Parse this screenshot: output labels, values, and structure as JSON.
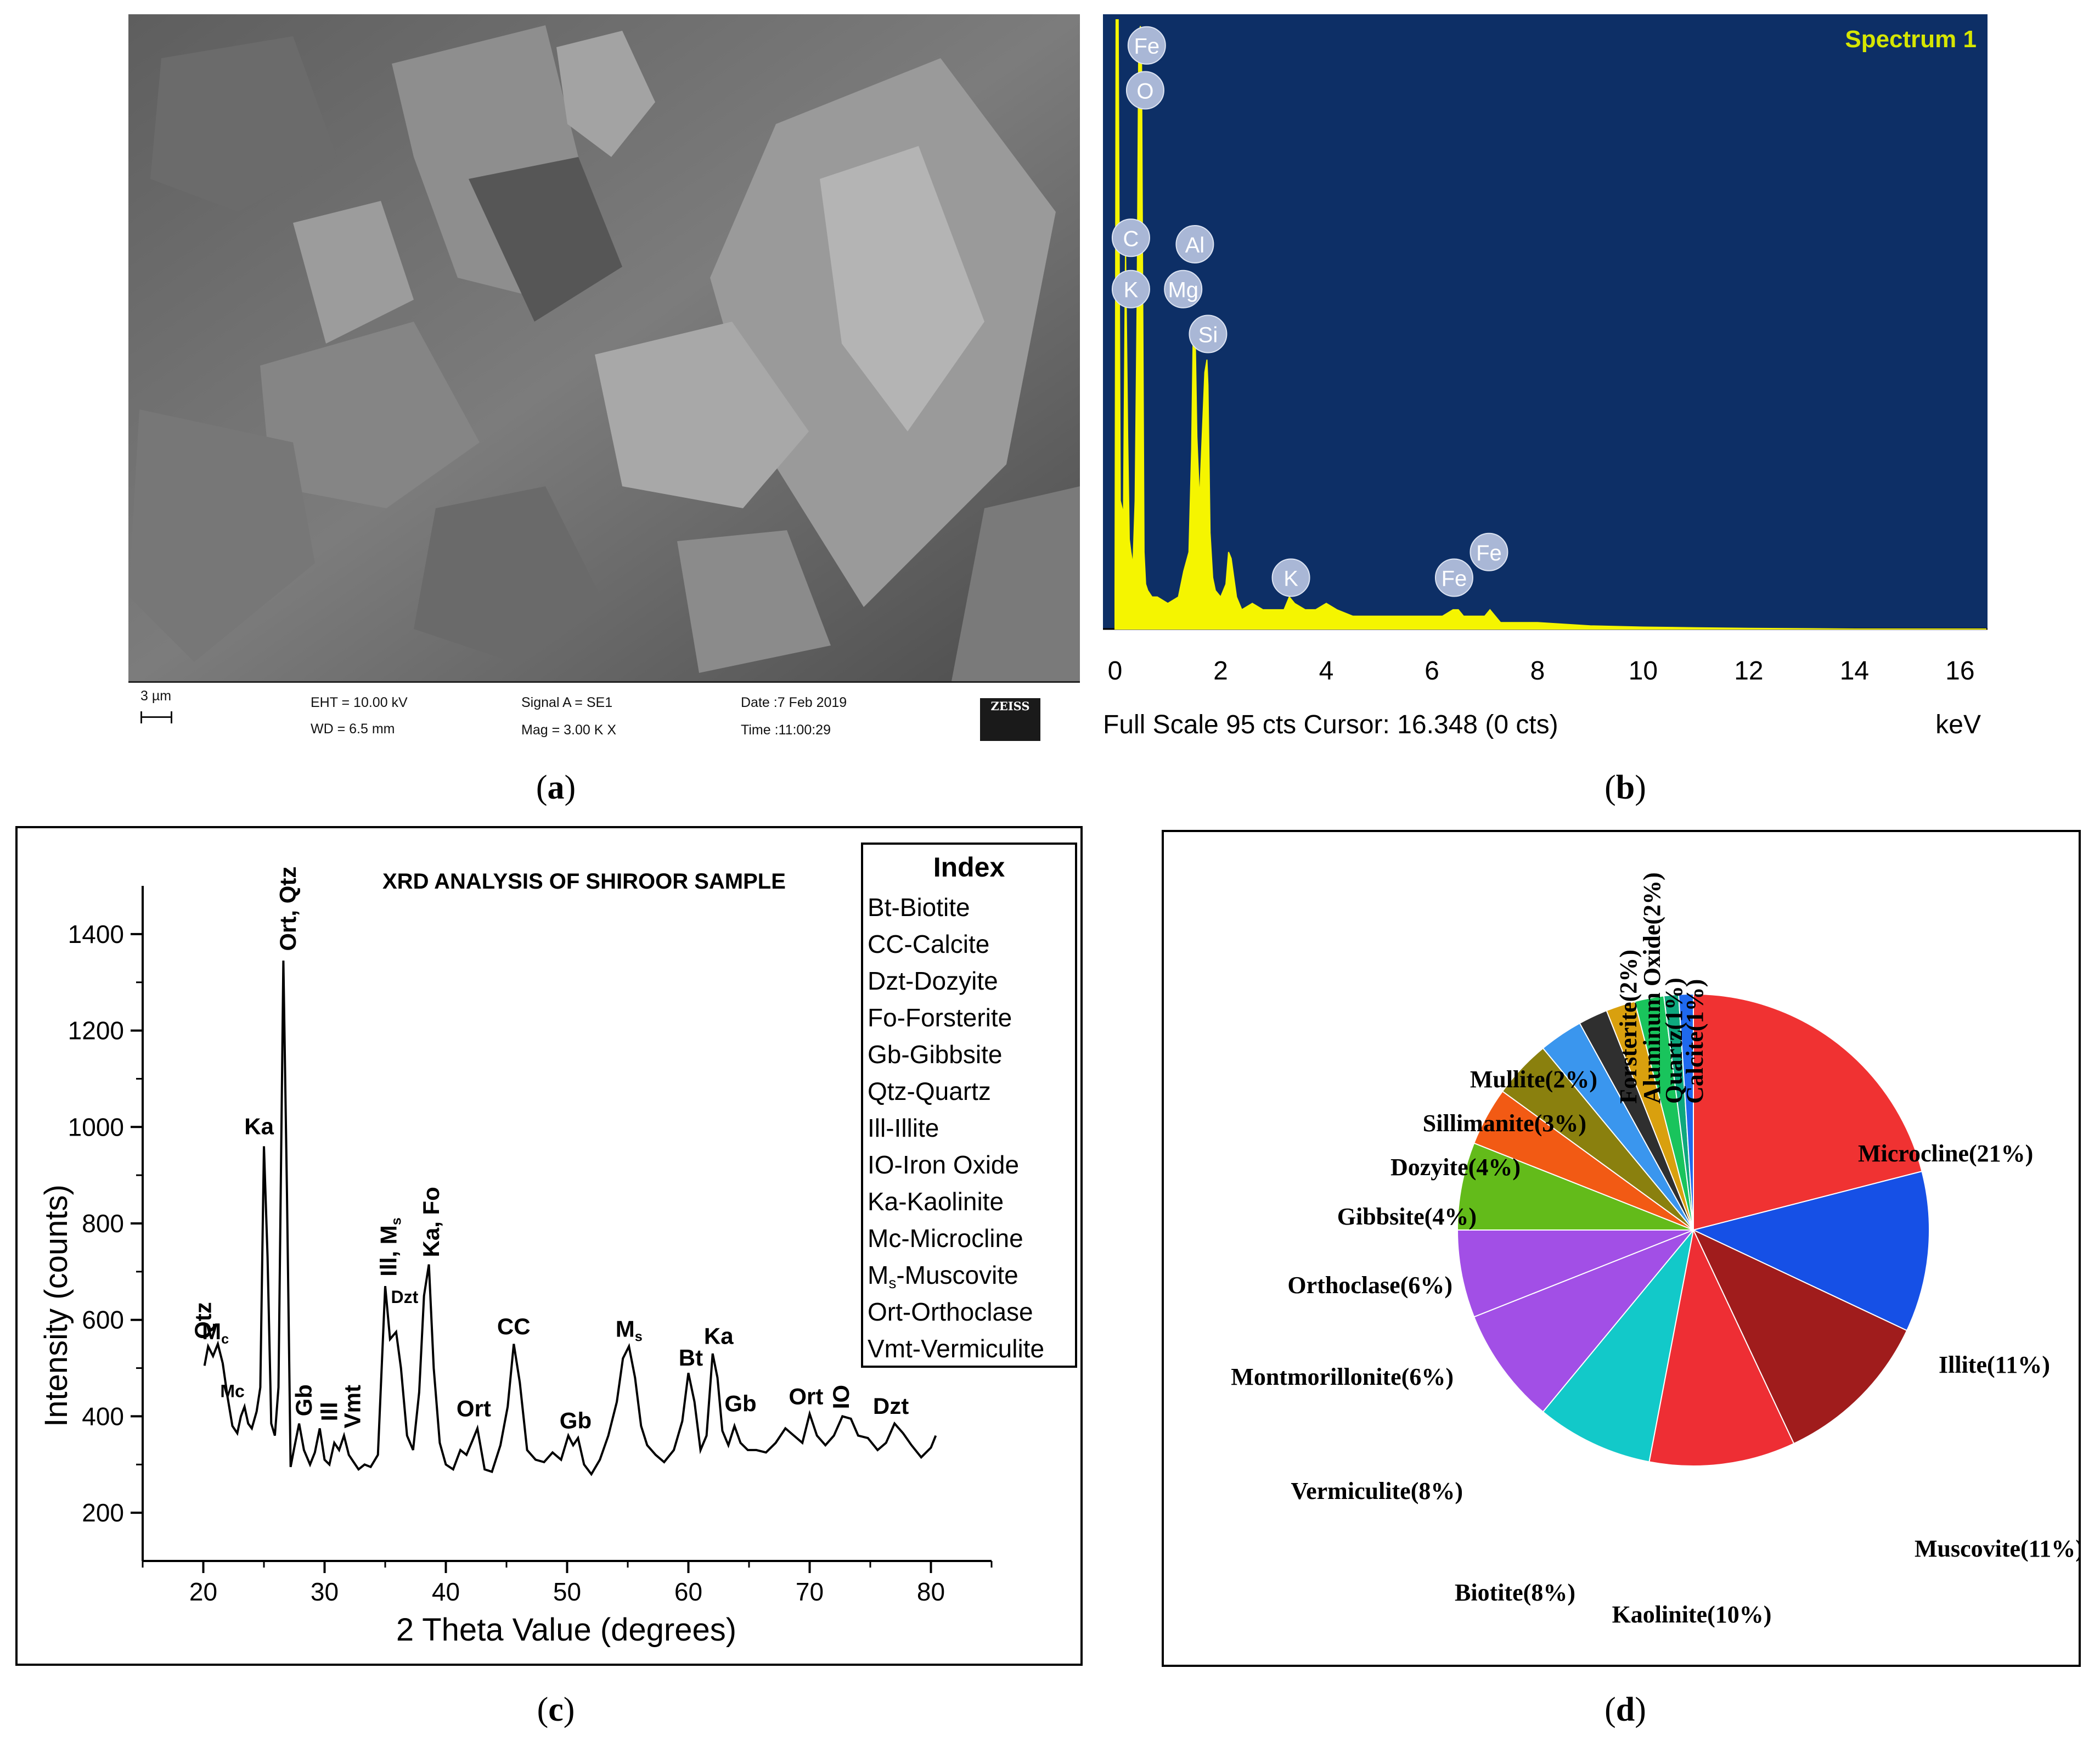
{
  "panels": {
    "a": {
      "caption": "a",
      "footer": {
        "scale": "3 µm",
        "eht": "EHT = 10.00 kV",
        "wd": "WD = 6.5 mm",
        "signal": "Signal A = SE1",
        "mag": "Mag = 3.00 K X",
        "date": "Date :7 Feb 2019",
        "time": "Time :11:00:29",
        "logo": "ZEISS"
      }
    },
    "b": {
      "caption": "b"
    },
    "c": {
      "caption": "c"
    },
    "d": {
      "caption": "d"
    }
  },
  "colors": {
    "eds_background": "#0d2f66",
    "eds_spectrum": "#f5f500",
    "eds_title": "#d6e600",
    "eds_marker_fill": "#a9b7d6",
    "eds_marker_text": "#ffffff"
  },
  "chart_data": [
    {
      "id": "eds-spectrum",
      "type": "area",
      "title": "Spectrum 1",
      "xlabel": "keV",
      "status": "Full Scale 95 cts Cursor: 16.348  (0 cts)",
      "xlim": [
        0,
        16.5
      ],
      "ylim": [
        0,
        95
      ],
      "xticks": [
        0,
        2,
        4,
        6,
        8,
        10,
        12,
        14,
        16
      ],
      "series": [
        {
          "x": [
            0.0,
            0.02,
            0.06,
            0.1,
            0.16,
            0.2,
            0.24,
            0.27,
            0.3,
            0.34,
            0.38,
            0.42,
            0.45,
            0.48,
            0.5,
            0.52,
            0.55,
            0.58,
            0.62,
            0.7,
            0.8,
            1.0,
            1.2,
            1.3,
            1.4,
            1.45,
            1.48,
            1.5,
            1.52,
            1.55,
            1.6,
            1.65,
            1.7,
            1.74,
            1.76,
            1.8,
            1.85,
            1.9,
            2.0,
            2.1,
            2.15,
            2.2,
            2.3,
            2.4,
            2.6,
            2.8,
            3.0,
            3.2,
            3.3,
            3.4,
            3.6,
            3.8,
            4.0,
            4.2,
            4.5,
            5.0,
            5.5,
            6.0,
            6.2,
            6.4,
            6.5,
            6.6,
            6.8,
            7.0,
            7.1,
            7.3,
            7.6,
            8.0,
            9.0,
            10.0,
            11.0,
            12.0,
            14.0,
            16.5
          ],
          "y": [
            6,
            95,
            95,
            20,
            18,
            60,
            30,
            14,
            12,
            10,
            20,
            52,
            93,
            94,
            93,
            60,
            12,
            7,
            6,
            5,
            5,
            4,
            5,
            9,
            12,
            28,
            46,
            48,
            45,
            30,
            20,
            30,
            40,
            42,
            38,
            15,
            8,
            6,
            5,
            7,
            12,
            11,
            5,
            3,
            4,
            3,
            3,
            3,
            5,
            4,
            3,
            3,
            4,
            3,
            2,
            2,
            2,
            2,
            2,
            3,
            3,
            2,
            2,
            2,
            3,
            1,
            1,
            1,
            0.5,
            0.3,
            0.2,
            0.1,
            0,
            0
          ]
        }
      ],
      "annotations": [
        {
          "label": "Fe",
          "x": 0.58,
          "y": 91
        },
        {
          "label": "O",
          "x": 0.55,
          "y": 84
        },
        {
          "label": "C",
          "x": 0.28,
          "y": 61
        },
        {
          "label": "K",
          "x": 0.28,
          "y": 53
        },
        {
          "label": "Al",
          "x": 1.49,
          "y": 60
        },
        {
          "label": "Mg",
          "x": 1.27,
          "y": 53
        },
        {
          "label": "Si",
          "x": 1.74,
          "y": 46
        },
        {
          "label": "K",
          "x": 3.31,
          "y": 8
        },
        {
          "label": "Fe",
          "x": 6.4,
          "y": 8
        },
        {
          "label": "Fe",
          "x": 7.06,
          "y": 12
        }
      ]
    },
    {
      "id": "xrd-pattern",
      "type": "line",
      "title": "XRD ANALYSIS OF SHIROOR SAMPLE",
      "xlabel": "2 Theta Value (degrees)",
      "ylabel": "Intensity (counts)",
      "xlim": [
        15,
        85
      ],
      "ylim": [
        100,
        1500
      ],
      "xticks": [
        20,
        30,
        40,
        50,
        60,
        70,
        80
      ],
      "yticks": [
        200,
        400,
        600,
        800,
        1000,
        1200,
        1400
      ],
      "legend": {
        "title": "Index",
        "entries": [
          "Bt-Biotite",
          "CC-Calcite",
          "Dzt-Dozyite",
          "Fo-Forsterite",
          "Gb-Gibbsite",
          "Qtz-Quartz",
          "Ill-Illite",
          "IO-Iron Oxide",
          "Ka-Kaolinite",
          "Mc-Microcline",
          "Ms-Muscovite",
          "Ort-Orthoclase",
          "Vmt-Vermiculite"
        ],
        "subscripts": {
          "Ms-Muscovite": [
            "M",
            "s",
            "-Muscovite"
          ]
        }
      },
      "series": [
        {
          "x": [
            20.1,
            20.4,
            20.8,
            21.2,
            21.6,
            22.0,
            22.4,
            22.8,
            23.1,
            23.4,
            23.7,
            24.0,
            24.4,
            24.7,
            25.0,
            25.3,
            25.6,
            25.9,
            26.2,
            26.6,
            26.9,
            27.2,
            27.5,
            27.9,
            28.3,
            28.8,
            29.2,
            29.6,
            30.0,
            30.4,
            30.8,
            31.2,
            31.6,
            32.0,
            32.4,
            32.8,
            33.3,
            33.8,
            34.4,
            35.0,
            35.4,
            35.9,
            36.3,
            36.8,
            37.3,
            37.8,
            38.2,
            38.6,
            39.0,
            39.5,
            40.0,
            40.6,
            41.2,
            41.7,
            42.2,
            42.6,
            43.2,
            43.8,
            44.5,
            45.1,
            45.6,
            46.1,
            46.7,
            47.4,
            48.1,
            48.8,
            49.5,
            50.1,
            50.5,
            50.9,
            51.4,
            52.0,
            52.7,
            53.4,
            54.1,
            54.6,
            55.1,
            55.6,
            56.1,
            56.6,
            57.3,
            58.0,
            58.8,
            59.5,
            60.0,
            60.5,
            61.0,
            61.5,
            62.0,
            62.4,
            62.8,
            63.3,
            63.8,
            64.3,
            64.9,
            65.6,
            66.4,
            67.2,
            68.0,
            68.7,
            69.4,
            70.0,
            70.6,
            71.3,
            72.0,
            72.7,
            73.4,
            74.0,
            74.8,
            75.6,
            76.3,
            77.0,
            77.7,
            78.4,
            79.2,
            80.0,
            80.4
          ],
          "y": [
            505,
            545,
            525,
            550,
            510,
            440,
            380,
            365,
            400,
            420,
            385,
            375,
            410,
            460,
            960,
            730,
            385,
            360,
            460,
            1345,
            860,
            295,
            335,
            385,
            330,
            300,
            325,
            375,
            310,
            300,
            345,
            330,
            360,
            320,
            305,
            290,
            300,
            295,
            320,
            670,
            560,
            575,
            500,
            360,
            330,
            450,
            650,
            715,
            500,
            345,
            300,
            290,
            330,
            320,
            350,
            375,
            290,
            285,
            340,
            420,
            550,
            470,
            330,
            310,
            305,
            325,
            310,
            360,
            340,
            355,
            300,
            280,
            310,
            360,
            430,
            520,
            545,
            480,
            380,
            340,
            320,
            305,
            330,
            390,
            490,
            430,
            330,
            360,
            530,
            480,
            370,
            340,
            380,
            345,
            330,
            330,
            325,
            345,
            375,
            360,
            345,
            405,
            360,
            340,
            360,
            400,
            395,
            360,
            355,
            330,
            345,
            385,
            365,
            340,
            315,
            335,
            360
          ]
        }
      ],
      "annotations": [
        {
          "label": "Qtz",
          "x": 20.0,
          "y": 560,
          "rot": -90
        },
        {
          "label": "M",
          "sub": "c",
          "x": 21.0,
          "y": 560
        },
        {
          "label": "Mc",
          "x": 22.4,
          "y": 440,
          "small": true
        },
        {
          "label": "Ka",
          "x": 24.6,
          "y": 985
        },
        {
          "label": "Ort, Qtz",
          "x": 27.0,
          "y": 1365,
          "rot": -90
        },
        {
          "label": "Gb",
          "x": 28.3,
          "y": 400,
          "rot": -90
        },
        {
          "label": "Ill",
          "x": 30.4,
          "y": 390,
          "rot": -90
        },
        {
          "label": "Vmt",
          "x": 32.3,
          "y": 375,
          "rot": -90
        },
        {
          "label": "Ill, M",
          "sub": "s",
          "x": 35.3,
          "y": 690,
          "rot": -90
        },
        {
          "label": "Dzt",
          "x": 36.6,
          "y": 635,
          "small": true
        },
        {
          "label": "Ka, Fo",
          "x": 38.8,
          "y": 730,
          "rot": -90
        },
        {
          "label": "Ort",
          "x": 42.3,
          "y": 400
        },
        {
          "label": "CC",
          "x": 45.6,
          "y": 570
        },
        {
          "label": "Gb",
          "x": 50.7,
          "y": 375
        },
        {
          "label": "M",
          "sub": "s",
          "x": 55.1,
          "y": 565
        },
        {
          "label": "Bt",
          "x": 60.2,
          "y": 505
        },
        {
          "label": "Ka",
          "x": 62.5,
          "y": 550
        },
        {
          "label": "Gb",
          "x": 64.3,
          "y": 410
        },
        {
          "label": "Ort",
          "x": 69.7,
          "y": 425
        },
        {
          "label": "IO",
          "x": 72.6,
          "y": 415,
          "rot": -90
        },
        {
          "label": "Dzt",
          "x": 76.7,
          "y": 405
        }
      ]
    },
    {
      "id": "mineral-composition",
      "type": "pie",
      "slices": [
        {
          "label": "Microcline(21%)",
          "value": 21,
          "color": "#f03232"
        },
        {
          "label": "Illite(11%)",
          "value": 11,
          "color": "#1650e6"
        },
        {
          "label": "Muscovite(11%)",
          "value": 11,
          "color": "#a01c1c"
        },
        {
          "label": "Kaolinite(10%)",
          "value": 10,
          "color": "#ee2e34"
        },
        {
          "label": "Biotite(8%)",
          "value": 8,
          "color": "#12c9c9"
        },
        {
          "label": "Vermiculite(8%)",
          "value": 8,
          "color": "#a24fe6"
        },
        {
          "label": "Montmorillonite(6%)",
          "value": 6,
          "color": "#a24fe6"
        },
        {
          "label": "Orthoclase(6%)",
          "value": 6,
          "color": "#63bb1a"
        },
        {
          "label": "Gibbsite(4%)",
          "value": 4,
          "color": "#f25a14"
        },
        {
          "label": "Dozyite(4%)",
          "value": 4,
          "color": "#8a800e"
        },
        {
          "label": "Sillimanite(3%)",
          "value": 3,
          "color": "#3a96ee"
        },
        {
          "label": "Mullite(2%)",
          "value": 2,
          "color": "#2f2f2f"
        },
        {
          "label": "Forsterite(2%)",
          "value": 2,
          "color": "#d9a00e"
        },
        {
          "label": "Aluminum Oxide(2%)",
          "value": 2,
          "color": "#19c45c"
        },
        {
          "label": "Quartz(1%)",
          "value": 1,
          "color": "#0ea87e"
        },
        {
          "label": "Calcite(1%)",
          "value": 1,
          "color": "#1f69ee"
        }
      ]
    }
  ]
}
